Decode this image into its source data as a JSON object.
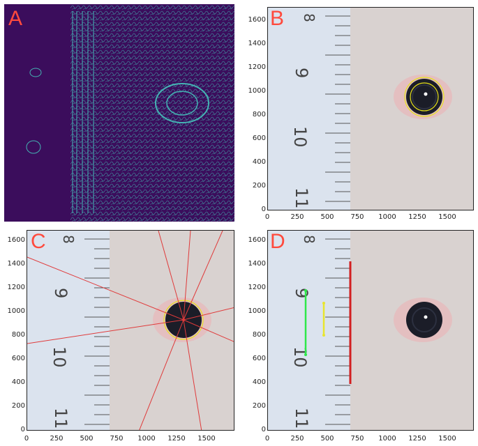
{
  "panels": [
    {
      "id": "A",
      "label": "A"
    },
    {
      "id": "B",
      "label": "B"
    },
    {
      "id": "C",
      "label": "C"
    },
    {
      "id": "D",
      "label": "D"
    }
  ],
  "axes": {
    "y_ticks": [
      "0",
      "200",
      "400",
      "600",
      "800",
      "1000",
      "1200",
      "1400",
      "1600"
    ],
    "x_ticks": [
      "0",
      "250",
      "500",
      "750",
      "1000",
      "1250",
      "1500"
    ]
  },
  "ruler_numbers": [
    "8",
    "9",
    "10",
    "11"
  ],
  "colors": {
    "label_red": "#ff4a3d",
    "edge_bg": "#3b0d5c",
    "edge_line": "#44b3b3",
    "ruler": "#dbe3ee",
    "fur": "#d9d2d0",
    "iris_circle": "#e5e01a",
    "ray": "#e03a3a",
    "marker_green": "#2ee84a",
    "marker_yellow": "#e8e52e",
    "marker_red": "#d21f1f"
  }
}
